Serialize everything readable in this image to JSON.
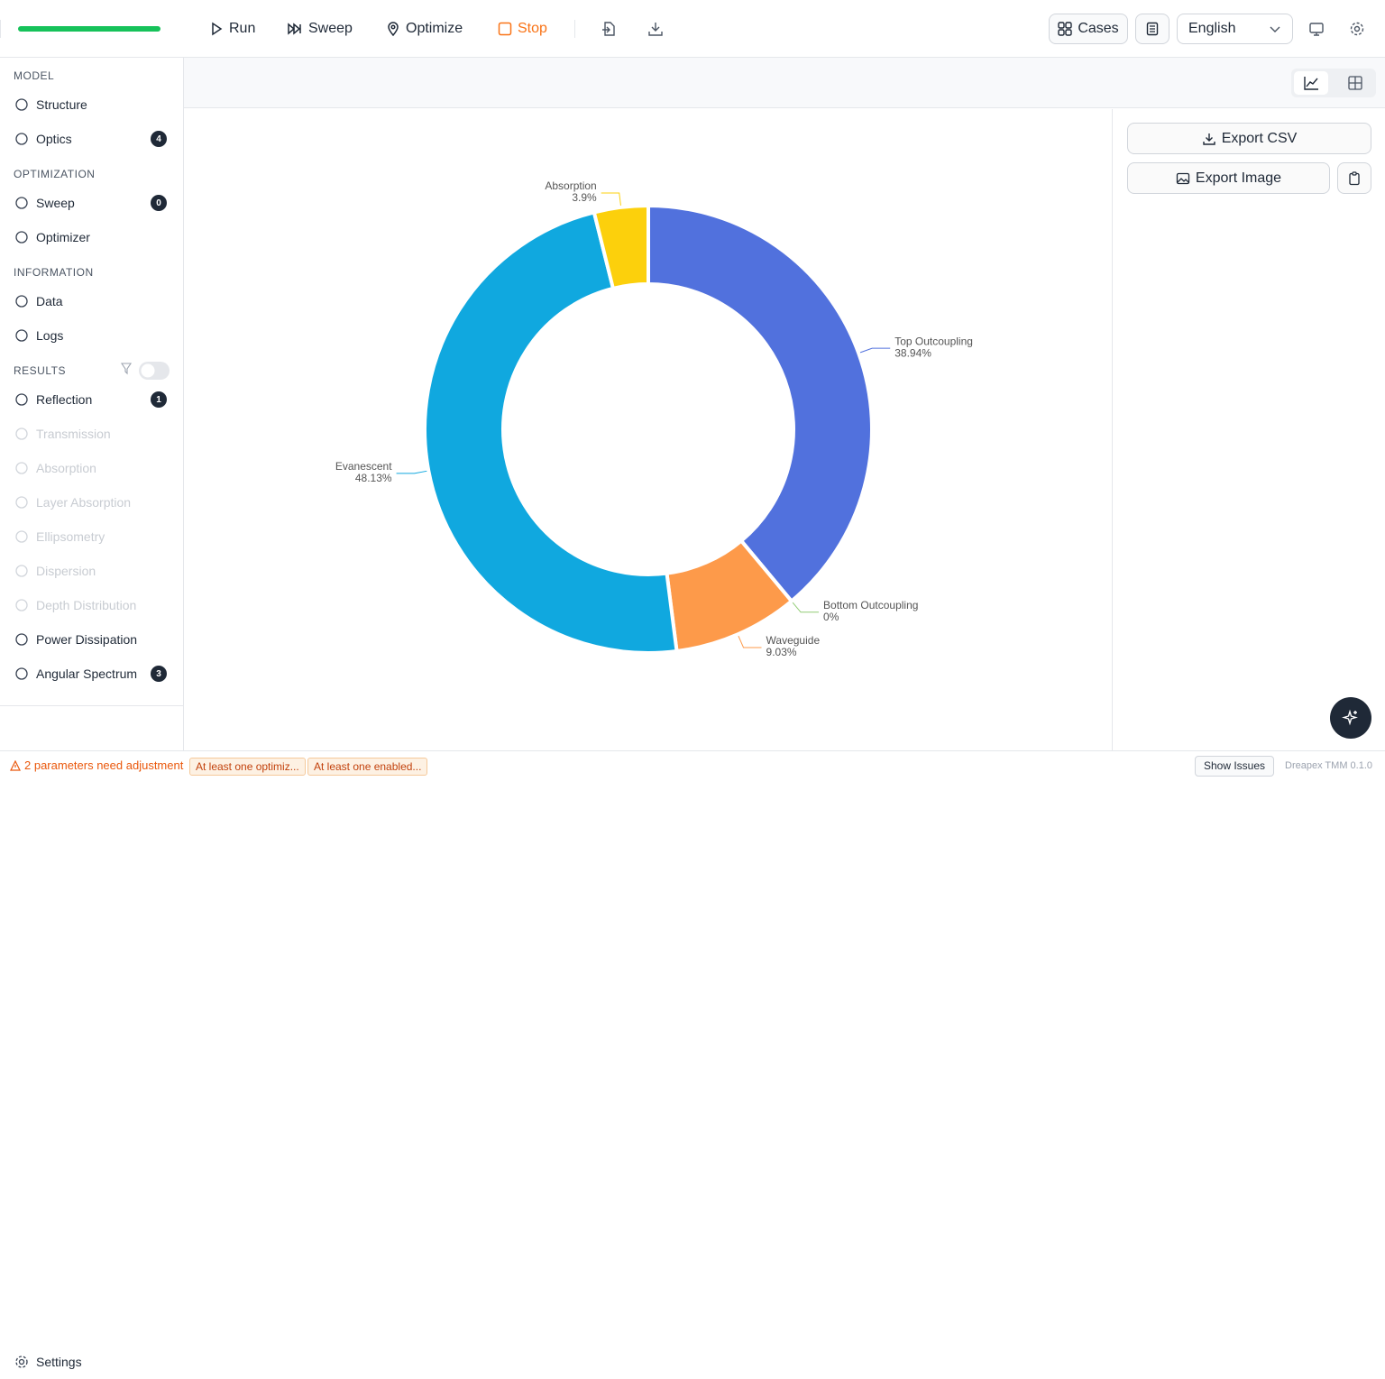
{
  "toolbar": {
    "run": "Run",
    "sweep": "Sweep",
    "optimize": "Optimize",
    "stop": "Stop",
    "cases": "Cases",
    "language": "English"
  },
  "sidebar": {
    "sections": [
      {
        "title": "MODEL",
        "items": [
          {
            "label": "Structure"
          },
          {
            "label": "Optics",
            "badge": 4
          }
        ]
      },
      {
        "title": "OPTIMIZATION",
        "items": [
          {
            "label": "Sweep",
            "badge": 0
          },
          {
            "label": "Optimizer"
          }
        ]
      },
      {
        "title": "INFORMATION",
        "items": [
          {
            "label": "Data"
          },
          {
            "label": "Logs"
          }
        ]
      },
      {
        "title": "RESULTS",
        "items": [
          {
            "label": "Reflection",
            "badge": 1
          },
          {
            "label": "Transmission",
            "disabled": true
          },
          {
            "label": "Absorption",
            "disabled": true
          },
          {
            "label": "Layer Absorption",
            "disabled": true
          },
          {
            "label": "Ellipsometry",
            "disabled": true
          },
          {
            "label": "Dispersion",
            "disabled": true
          },
          {
            "label": "Depth Distribution",
            "disabled": true
          },
          {
            "label": "Power Dissipation"
          },
          {
            "label": "Angular Spectrum",
            "badge": 3
          }
        ]
      }
    ],
    "settings": "Settings"
  },
  "chart_data": {
    "type": "pie",
    "categories": [
      "Top Outcoupling",
      "Bottom Outcoupling",
      "Waveguide",
      "Evanescent",
      "Absorption"
    ],
    "values": [
      38.94,
      0,
      9.03,
      48.13,
      3.9
    ],
    "value_labels": [
      "38.94%",
      "0%",
      "9.03%",
      "48.13%",
      "3.9%"
    ],
    "colors": [
      "#5171dd",
      "#91cc75",
      "#fd9a4a",
      "#10a8df",
      "#fcd00c"
    ]
  },
  "panel": {
    "export_csv": "Export CSV",
    "export_image": "Export Image"
  },
  "status": {
    "warning": "2 parameters need adjustment",
    "tags": [
      "At least one optimiz...",
      "At least one enabled..."
    ],
    "show_issues": "Show Issues",
    "version": "Dreapex TMM 0.1.0"
  }
}
